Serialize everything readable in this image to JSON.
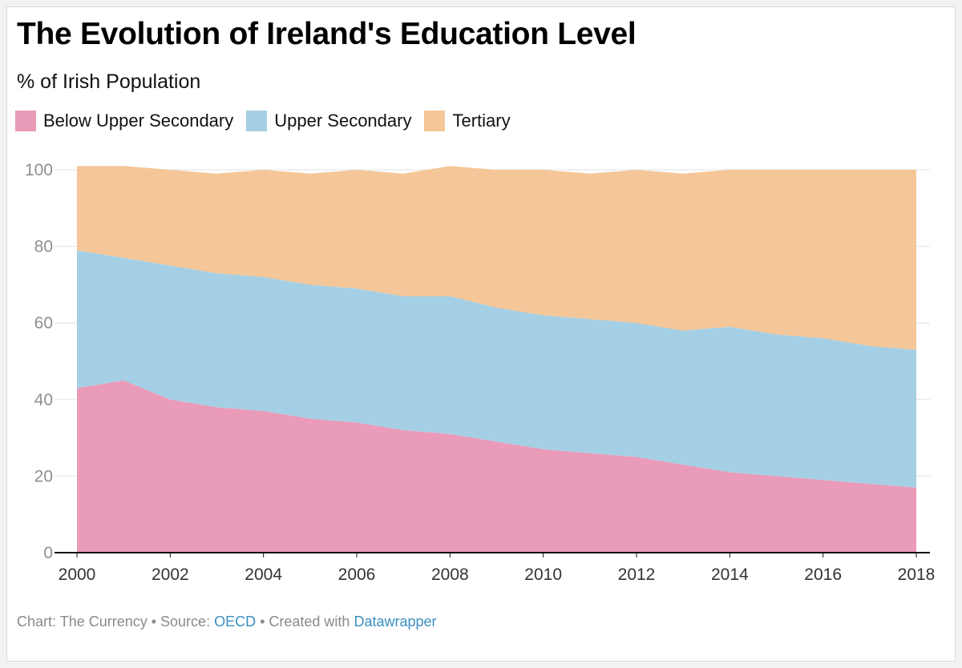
{
  "chart_data": {
    "type": "area",
    "stacked": true,
    "title": "The Evolution of Ireland's Education Level",
    "subtitle": "% of Irish Population",
    "xlabel": "",
    "ylabel": "",
    "x": [
      2000,
      2001,
      2002,
      2003,
      2004,
      2005,
      2006,
      2007,
      2008,
      2009,
      2010,
      2011,
      2012,
      2013,
      2014,
      2015,
      2016,
      2017,
      2018
    ],
    "x_ticks": [
      "2000",
      "2002",
      "2004",
      "2006",
      "2008",
      "2010",
      "2012",
      "2014",
      "2016",
      "2018"
    ],
    "y_ticks": [
      "0",
      "20",
      "40",
      "60",
      "80",
      "100"
    ],
    "ylim": [
      0,
      100
    ],
    "grid": true,
    "series": [
      {
        "name": "Below Upper Secondary",
        "color": "#e99bb9",
        "values": [
          43,
          45,
          40,
          38,
          37,
          35,
          34,
          32,
          31,
          29,
          27,
          26,
          25,
          23,
          21,
          20,
          19,
          18,
          17
        ]
      },
      {
        "name": "Upper Secondary",
        "color": "#a5cfe4",
        "values": [
          36,
          32,
          35,
          35,
          35,
          35,
          35,
          35,
          36,
          35,
          35,
          35,
          35,
          35,
          38,
          37,
          37,
          36,
          36
        ]
      },
      {
        "name": "Tertiary",
        "color": "#f4c698",
        "values": [
          22,
          24,
          25,
          26,
          28,
          29,
          31,
          32,
          34,
          36,
          38,
          38,
          40,
          41,
          41,
          43,
          44,
          46,
          47
        ]
      }
    ]
  },
  "footer": {
    "prefix": "Chart: The Currency • Source: ",
    "source": "OECD",
    "middle": " • Created with ",
    "tool": "Datawrapper"
  }
}
